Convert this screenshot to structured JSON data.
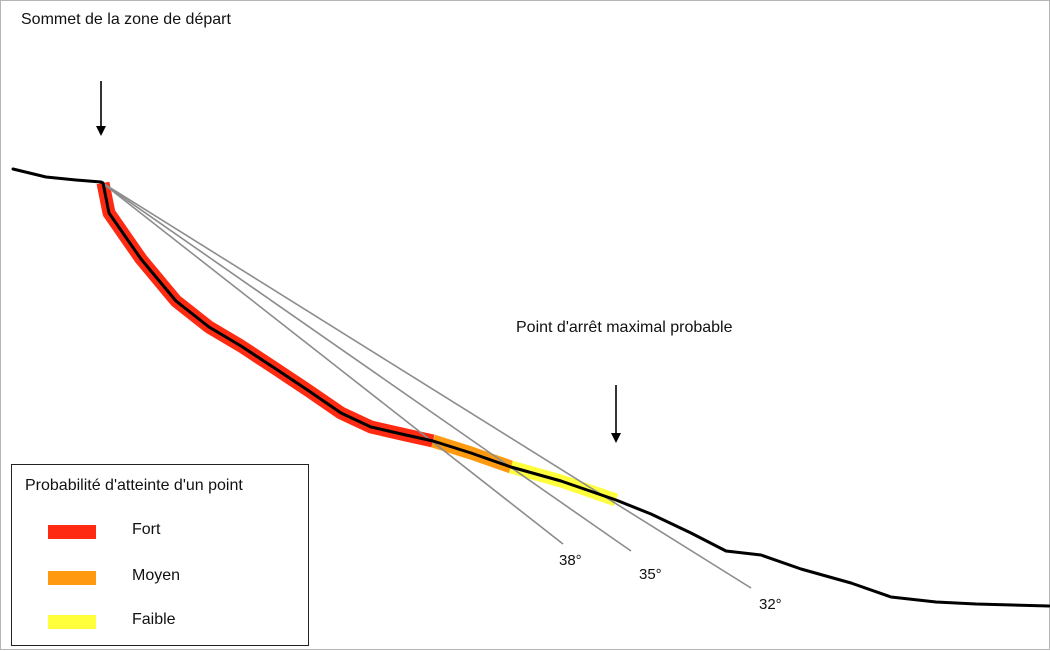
{
  "labels": {
    "start_zone": "Sommet de la zone de départ",
    "stop_point": "Point d'arrêt maximal probable"
  },
  "angles": [
    {
      "label": "38°",
      "degrees": 38
    },
    {
      "label": "35°",
      "degrees": 35
    },
    {
      "label": "32°",
      "degrees": 32
    }
  ],
  "legend": {
    "title": "Probabilité d'atteinte d'un point",
    "items": [
      {
        "label": "Fort",
        "color": "#ff2a12"
      },
      {
        "label": "Moyen",
        "color": "#ff9a10"
      },
      {
        "label": "Faible",
        "color": "#ffff3c"
      }
    ]
  },
  "colors": {
    "terrain": "#000000",
    "reach_lines": "#8c8c8c",
    "arrows": "#000000"
  }
}
